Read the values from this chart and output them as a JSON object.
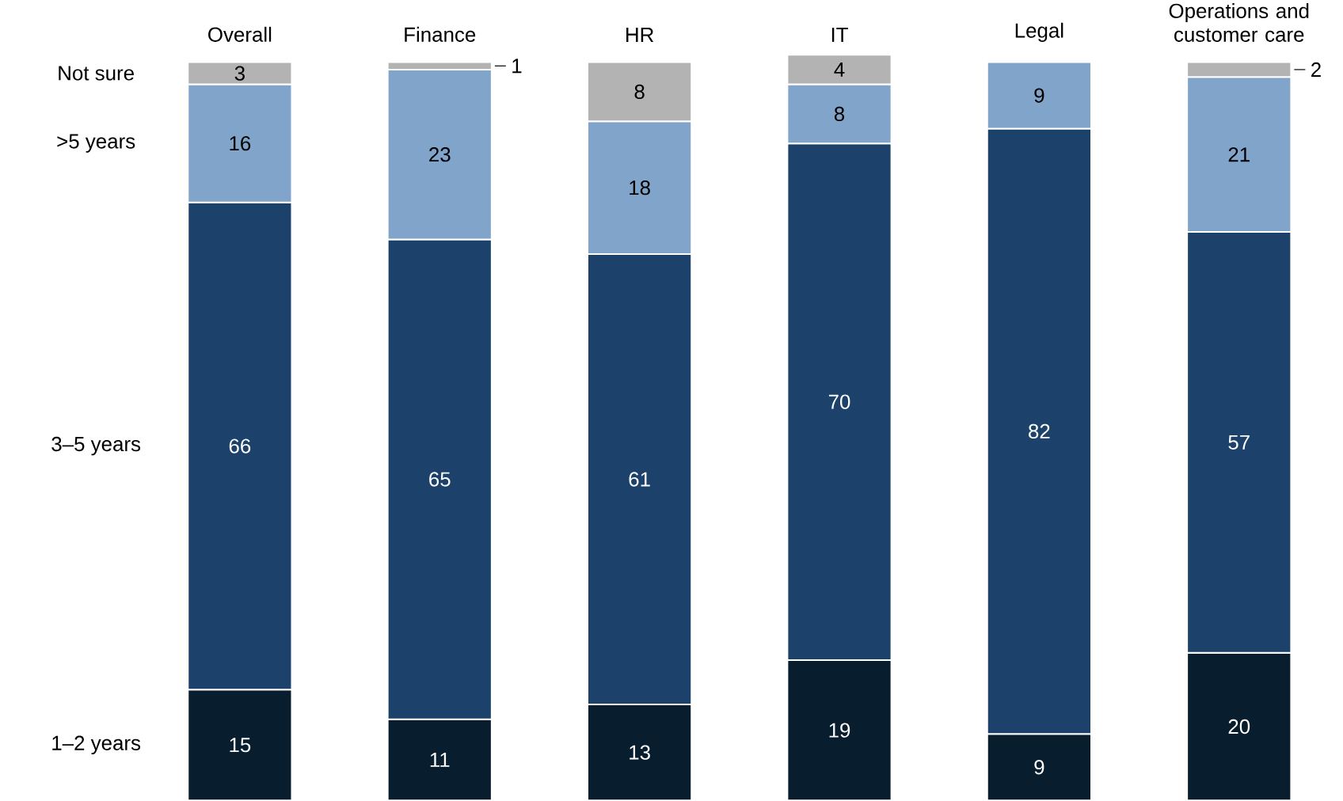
{
  "chart_data": {
    "type": "bar",
    "stacked": true,
    "data_labels": true,
    "categories": [
      "Overall",
      "Finance",
      "HR",
      "IT",
      "Legal",
      "Operations and customer care"
    ],
    "series": [
      {
        "name": "1–2 years",
        "color": "#081d2e",
        "values": [
          15,
          11,
          13,
          19,
          9,
          20
        ]
      },
      {
        "name": "3–5 years",
        "color": "#1c426b",
        "values": [
          66,
          65,
          61,
          70,
          82,
          57
        ]
      },
      {
        "name": ">5 years",
        "color": "#80a4ca",
        "values": [
          16,
          23,
          18,
          8,
          9,
          21
        ]
      },
      {
        "name": "Not sure",
        "color": "#b3b3b3",
        "values": [
          3,
          1,
          8,
          4,
          null,
          2
        ]
      }
    ]
  }
}
